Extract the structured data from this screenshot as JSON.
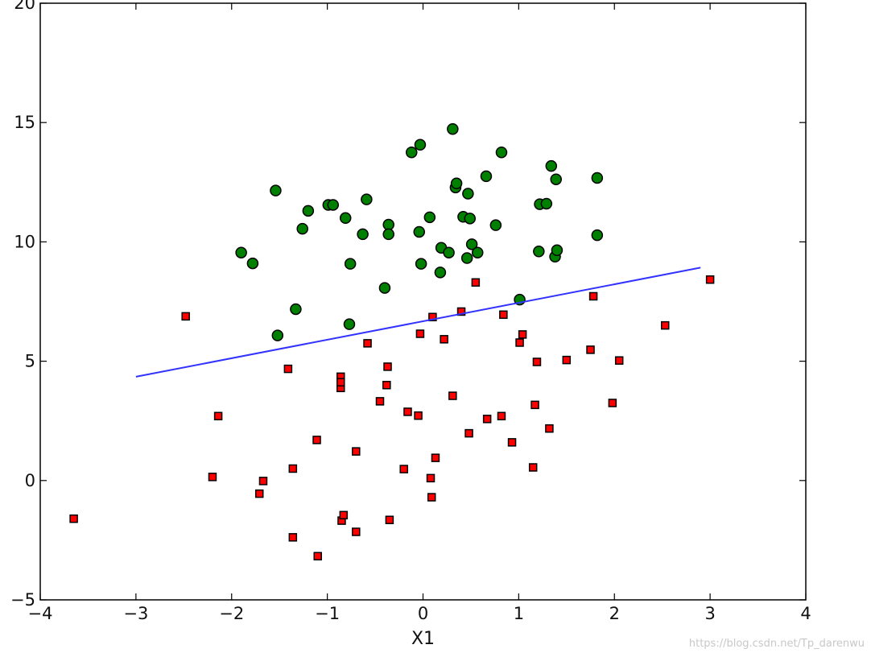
{
  "chart_data": {
    "type": "scatter",
    "title": "",
    "xlabel": "X1",
    "ylabel": "",
    "xlim": [
      -4,
      4
    ],
    "ylim": [
      -5,
      20
    ],
    "xticks": [
      "−4",
      "−3",
      "−2",
      "−1",
      "0",
      "1",
      "2",
      "3",
      "4"
    ],
    "yticks": [
      "−5",
      "0",
      "5",
      "10",
      "15",
      "20"
    ],
    "grid": false,
    "legend": "none",
    "series": [
      {
        "marker": "circle",
        "color": "#008000",
        "points": [
          [
            -1.9,
            9.55
          ],
          [
            -1.78,
            9.1
          ],
          [
            -1.54,
            12.15
          ],
          [
            -1.52,
            6.08
          ],
          [
            -1.33,
            7.18
          ],
          [
            -1.26,
            10.55
          ],
          [
            -1.2,
            11.3
          ],
          [
            -0.99,
            11.55
          ],
          [
            -0.94,
            11.55
          ],
          [
            -0.81,
            11.0
          ],
          [
            -0.76,
            9.08
          ],
          [
            -0.77,
            6.55
          ],
          [
            -0.63,
            10.32
          ],
          [
            -0.59,
            11.78
          ],
          [
            -0.4,
            8.07
          ],
          [
            -0.36,
            10.72
          ],
          [
            -0.36,
            10.32
          ],
          [
            -0.12,
            13.75
          ],
          [
            -0.03,
            14.07
          ],
          [
            -0.04,
            10.42
          ],
          [
            -0.02,
            9.08
          ],
          [
            0.07,
            11.03
          ],
          [
            0.18,
            8.72
          ],
          [
            0.19,
            9.75
          ],
          [
            0.27,
            9.55
          ],
          [
            0.31,
            14.73
          ],
          [
            0.34,
            12.28
          ],
          [
            0.35,
            12.45
          ],
          [
            0.42,
            11.05
          ],
          [
            0.46,
            9.32
          ],
          [
            0.47,
            12.02
          ],
          [
            0.49,
            10.98
          ],
          [
            0.51,
            9.9
          ],
          [
            0.57,
            9.55
          ],
          [
            0.66,
            12.75
          ],
          [
            0.76,
            10.7
          ],
          [
            0.82,
            13.75
          ],
          [
            1.01,
            7.58
          ],
          [
            1.21,
            9.6
          ],
          [
            1.22,
            11.58
          ],
          [
            1.29,
            11.6
          ],
          [
            1.34,
            13.18
          ],
          [
            1.38,
            9.38
          ],
          [
            1.39,
            12.62
          ],
          [
            1.4,
            9.65
          ],
          [
            1.82,
            12.68
          ],
          [
            1.82,
            10.28
          ]
        ]
      },
      {
        "marker": "square",
        "color": "#ff0000",
        "points": [
          [
            -3.65,
            -1.6
          ],
          [
            -2.48,
            6.88
          ],
          [
            -2.2,
            0.15
          ],
          [
            -2.14,
            2.7
          ],
          [
            -1.71,
            -0.55
          ],
          [
            -1.67,
            -0.02
          ],
          [
            -1.41,
            4.68
          ],
          [
            -1.36,
            0.5
          ],
          [
            -1.36,
            -2.38
          ],
          [
            -1.11,
            1.7
          ],
          [
            -1.1,
            -3.17
          ],
          [
            -0.86,
            4.35
          ],
          [
            -0.86,
            3.88
          ],
          [
            -0.86,
            4.12
          ],
          [
            -0.85,
            -1.68
          ],
          [
            -0.83,
            -1.45
          ],
          [
            -0.7,
            1.22
          ],
          [
            -0.7,
            -2.15
          ],
          [
            -0.58,
            5.75
          ],
          [
            -0.45,
            3.32
          ],
          [
            -0.38,
            4.0
          ],
          [
            -0.37,
            4.77
          ],
          [
            -0.35,
            -1.65
          ],
          [
            -0.2,
            0.48
          ],
          [
            -0.16,
            2.88
          ],
          [
            -0.05,
            2.72
          ],
          [
            -0.03,
            6.15
          ],
          [
            0.08,
            0.1
          ],
          [
            0.09,
            -0.7
          ],
          [
            0.1,
            6.85
          ],
          [
            0.13,
            0.95
          ],
          [
            0.22,
            5.92
          ],
          [
            0.31,
            3.55
          ],
          [
            0.4,
            7.08
          ],
          [
            0.48,
            1.98
          ],
          [
            0.55,
            8.3
          ],
          [
            0.67,
            2.58
          ],
          [
            0.82,
            2.7
          ],
          [
            0.84,
            6.95
          ],
          [
            0.93,
            1.6
          ],
          [
            1.01,
            5.78
          ],
          [
            1.04,
            6.12
          ],
          [
            1.15,
            0.55
          ],
          [
            1.17,
            3.17
          ],
          [
            1.19,
            4.97
          ],
          [
            1.32,
            2.18
          ],
          [
            1.5,
            5.05
          ],
          [
            1.75,
            5.48
          ],
          [
            1.78,
            7.72
          ],
          [
            1.98,
            3.25
          ],
          [
            2.05,
            5.03
          ],
          [
            2.53,
            6.5
          ],
          [
            3.0,
            8.42
          ]
        ]
      }
    ],
    "line": {
      "color": "#3333ff",
      "x": [
        -3.0,
        2.9
      ],
      "y": [
        4.35,
        8.92
      ]
    }
  },
  "watermark": "https://blog.csdn.net/Tp_darenwu"
}
